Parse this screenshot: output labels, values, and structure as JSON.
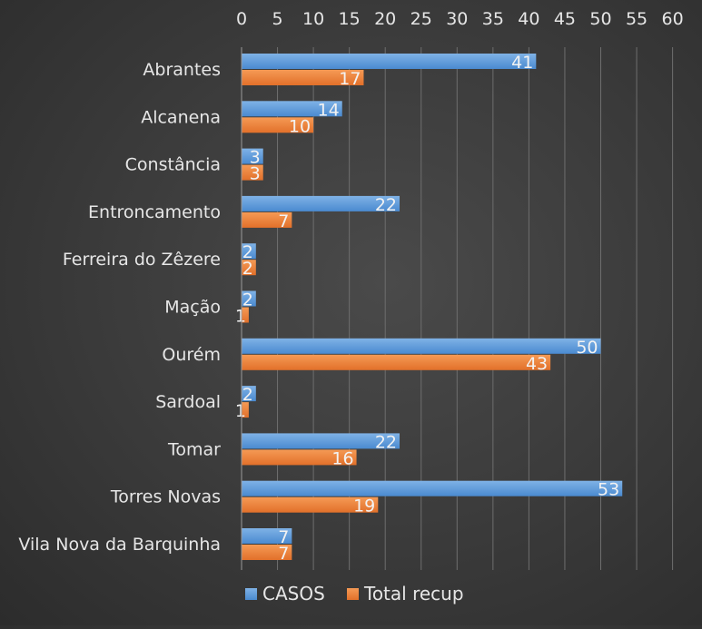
{
  "chart_data": {
    "type": "bar",
    "orientation": "horizontal",
    "categories": [
      "Abrantes",
      "Alcanena",
      "Constância",
      "Entroncamento",
      "Ferreira do Zêzere",
      "Mação",
      "Ourém",
      "Sardoal",
      "Tomar",
      "Torres Novas",
      "Vila Nova da Barquinha"
    ],
    "series": [
      {
        "name": "CASOS",
        "color": "#5b9bd5",
        "values": [
          41,
          14,
          3,
          22,
          2,
          2,
          50,
          2,
          22,
          53,
          7
        ]
      },
      {
        "name": "Total recup",
        "color": "#ed7d31",
        "values": [
          17,
          10,
          3,
          7,
          2,
          1,
          43,
          1,
          16,
          19,
          7
        ]
      }
    ],
    "xlim": [
      0,
      60
    ],
    "xticks": [
      0,
      5,
      10,
      15,
      20,
      25,
      30,
      35,
      40,
      45,
      50,
      55,
      60
    ],
    "x_axis_position": "top",
    "grid": true,
    "data_labels": true,
    "legend_position": "bottom",
    "title": "",
    "xlabel": "",
    "ylabel": ""
  }
}
